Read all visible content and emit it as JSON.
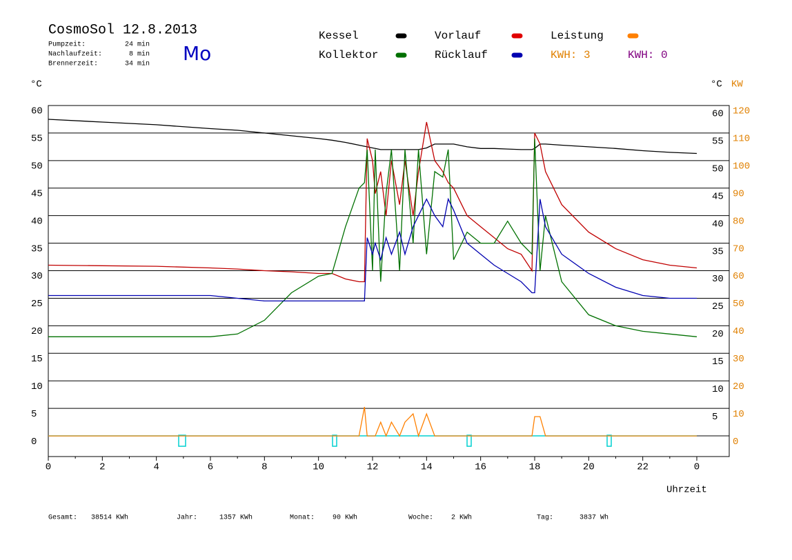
{
  "header": {
    "title": "CosmoSol 12.8.2013",
    "day": "Mo",
    "times": [
      {
        "label": "Pumpzeit:",
        "value": "24 min"
      },
      {
        "label": "Nachlaufzeit:",
        "value": "8 min"
      },
      {
        "label": "Brennerzeit:",
        "value": "34 min"
      }
    ],
    "kwh": [
      {
        "label": "KWH: 3",
        "color": "#e08000"
      },
      {
        "label": "KWH: 0",
        "color": "#800080"
      }
    ]
  },
  "chart_data": {
    "type": "line",
    "x": [
      0,
      2,
      4,
      6,
      7,
      8,
      9,
      10,
      10.5,
      11,
      11.5,
      11.7,
      11.8,
      12,
      12.1,
      12.3,
      12.5,
      12.7,
      13,
      13.2,
      13.5,
      13.7,
      14,
      14.3,
      14.6,
      14.8,
      15,
      15.5,
      16,
      16.5,
      17,
      17.5,
      17.9,
      18,
      18.2,
      18.4,
      19,
      20,
      21,
      22,
      23,
      24
    ],
    "xlim": [
      0,
      25.2
    ],
    "xticks": [
      0,
      2,
      4,
      6,
      8,
      10,
      12,
      14,
      16,
      18,
      20,
      22,
      {
        "value": 24,
        "label": "0"
      }
    ],
    "xlabel": "Uhrzeit",
    "ylabel": "°C",
    "y2label": "KW",
    "ylim": [
      -3.75,
      60
    ],
    "yticks": [
      0,
      5,
      10,
      15,
      20,
      25,
      30,
      35,
      40,
      45,
      50,
      55,
      60
    ],
    "y2lim": [
      -7.5,
      120
    ],
    "y2ticks": [
      0,
      10,
      20,
      30,
      40,
      50,
      60,
      70,
      80,
      90,
      100,
      110,
      120
    ],
    "grid": true,
    "series": [
      {
        "name": "Kessel",
        "color": "#000000",
        "values": [
          57.5,
          57,
          56.5,
          55.8,
          55.5,
          55,
          54.5,
          54,
          53.7,
          53.3,
          52.8,
          52.6,
          52.5,
          52.3,
          52.2,
          52,
          52,
          52,
          52,
          52,
          52,
          52,
          52.3,
          53,
          53,
          53,
          53,
          52.5,
          52.2,
          52.2,
          52.1,
          52,
          52,
          52.2,
          53,
          53,
          52.8,
          52.5,
          52.2,
          51.8,
          51.5,
          51.3
        ]
      },
      {
        "name": "Vorlauf",
        "color": "#c00000",
        "values": [
          31,
          30.9,
          30.8,
          30.5,
          30.3,
          30,
          29.8,
          29.5,
          29.5,
          28.5,
          28,
          28,
          54,
          50,
          44,
          48,
          40,
          50,
          42,
          50,
          40,
          48,
          57,
          50,
          48,
          46,
          45,
          40,
          38,
          36,
          34,
          33,
          30,
          55,
          53,
          48,
          42,
          37,
          34,
          32,
          31,
          30.5
        ]
      },
      {
        "name": "Leistung",
        "color": "#ff8000",
        "axis": "y2",
        "values": [
          0,
          0,
          0,
          0,
          0,
          0,
          0,
          0,
          0,
          0,
          0,
          10.5,
          0,
          0,
          0,
          5,
          0,
          5,
          0,
          5,
          8,
          0,
          8,
          0,
          0,
          0,
          0,
          0,
          0,
          0,
          0,
          0,
          0,
          7,
          7,
          0,
          0,
          0,
          0,
          0,
          0,
          0
        ]
      },
      {
        "name": "Kollektor",
        "color": "#007000",
        "values": [
          18,
          18,
          18,
          18,
          18.5,
          21,
          26,
          29,
          29.5,
          38,
          45,
          46,
          52,
          30,
          52,
          28,
          44,
          52,
          30,
          52,
          35,
          52,
          33,
          48,
          47,
          52,
          32,
          37,
          35,
          35,
          39,
          35,
          33,
          54,
          30,
          40,
          28,
          22,
          20,
          19,
          18.5,
          18
        ]
      },
      {
        "name": "Rücklauf",
        "color": "#0000b0",
        "values": [
          25.5,
          25.5,
          25.5,
          25.5,
          25,
          24.5,
          24.5,
          24.5,
          24.5,
          24.5,
          24.5,
          24.5,
          36,
          33,
          35,
          32,
          36,
          33,
          37,
          33,
          38,
          40,
          43,
          40,
          38,
          43,
          41,
          35,
          33,
          31,
          29.5,
          28,
          26,
          26,
          43,
          38,
          33,
          29.5,
          27,
          25.5,
          25,
          25
        ]
      }
    ]
  },
  "footer": [
    {
      "label": "Gesamt:",
      "value": "38514 KWh"
    },
    {
      "label": "Jahr:",
      "value": "1357 KWh"
    },
    {
      "label": "Monat:",
      "value": "90 KWh"
    },
    {
      "label": "Woche:",
      "value": "2 KWh"
    },
    {
      "label": "Tag:",
      "value": "3837 Wh"
    }
  ]
}
